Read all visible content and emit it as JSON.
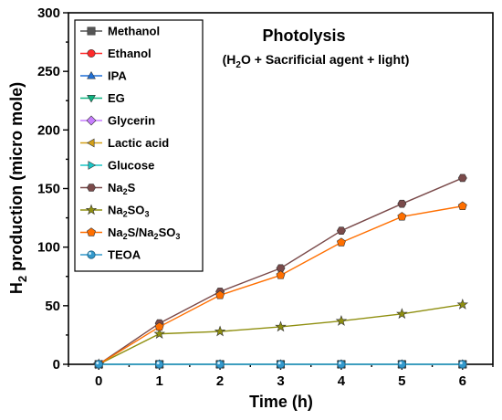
{
  "chart_data": {
    "type": "line",
    "title": "Photolysis",
    "subtitle": {
      "prefix": "(H",
      "sub1": "2",
      "rest": "O + Sacrificial agent + light)"
    },
    "xlabel": "Time (h)",
    "ylabel": {
      "main": "H",
      "sub": "2",
      "rest": " production (micro mole)"
    },
    "xlim": [
      -0.5,
      6.5
    ],
    "ylim": [
      0,
      300
    ],
    "x_ticks": [
      "0",
      "1",
      "2",
      "3",
      "4",
      "5",
      "6"
    ],
    "y_ticks": [
      "0",
      "50",
      "100",
      "150",
      "200",
      "250",
      "300"
    ],
    "grid": false,
    "legend_position": "top-left",
    "x": [
      0,
      1,
      2,
      3,
      4,
      5,
      6
    ],
    "series": [
      {
        "name": "Methanol",
        "name_parts": [
          [
            "Methanol",
            ""
          ]
        ],
        "color": "#555555",
        "marker": "square",
        "values": [
          0,
          0,
          0,
          0,
          0,
          0,
          0
        ]
      },
      {
        "name": "Ethanol",
        "name_parts": [
          [
            "Ethanol",
            ""
          ]
        ],
        "color": "#ff2a2a",
        "marker": "circle",
        "values": [
          0,
          0,
          0,
          0,
          0,
          0,
          0
        ]
      },
      {
        "name": "IPA",
        "name_parts": [
          [
            "IPA",
            ""
          ]
        ],
        "color": "#1f6fd6",
        "marker": "triangle-up",
        "values": [
          0,
          0,
          0,
          0,
          0,
          0,
          0
        ]
      },
      {
        "name": "EG",
        "name_parts": [
          [
            "EG",
            ""
          ]
        ],
        "color": "#0db380",
        "marker": "triangle-down",
        "values": [
          0,
          0,
          0,
          0,
          0,
          0,
          0
        ]
      },
      {
        "name": "Glycerin",
        "name_parts": [
          [
            "Glycerin",
            ""
          ]
        ],
        "color": "#c77dff",
        "marker": "diamond",
        "values": [
          0,
          0,
          0,
          0,
          0,
          0,
          0
        ]
      },
      {
        "name": "Lactic acid",
        "name_parts": [
          [
            "Lactic acid",
            ""
          ]
        ],
        "color": "#d4a017",
        "marker": "triangle-left",
        "values": [
          0,
          0,
          0,
          0,
          0,
          0,
          0
        ]
      },
      {
        "name": "Glucose",
        "name_parts": [
          [
            "Glucose",
            ""
          ]
        ],
        "color": "#1bc6c6",
        "marker": "triangle-right",
        "values": [
          0,
          0,
          0,
          0,
          0,
          0,
          0
        ]
      },
      {
        "name": "Na2S",
        "name_parts": [
          [
            "Na",
            ""
          ],
          [
            "2",
            "sub"
          ],
          [
            "S",
            ""
          ]
        ],
        "color": "#7a4a4a",
        "marker": "hexagon",
        "values": [
          0,
          35,
          62,
          82,
          114,
          137,
          159
        ]
      },
      {
        "name": "Na2SO3",
        "name_parts": [
          [
            "Na",
            ""
          ],
          [
            "2",
            "sub"
          ],
          [
            "SO",
            ""
          ],
          [
            "3",
            "sub"
          ]
        ],
        "color": "#8f8f10",
        "marker": "star",
        "values": [
          0,
          26,
          28,
          32,
          37,
          43,
          51
        ]
      },
      {
        "name": "Na2S/Na2SO3",
        "name_parts": [
          [
            "Na",
            ""
          ],
          [
            "2",
            "sub"
          ],
          [
            "S/Na",
            ""
          ],
          [
            "2",
            "sub"
          ],
          [
            "SO",
            ""
          ],
          [
            "3",
            "sub"
          ]
        ],
        "color": "#ff6f00",
        "marker": "pentagon",
        "values": [
          0,
          32,
          59,
          76,
          104,
          126,
          135
        ]
      },
      {
        "name": "TEOA",
        "name_parts": [
          [
            "TEOA",
            ""
          ]
        ],
        "color": "#3399cc",
        "marker": "ball",
        "values": [
          0,
          0,
          0,
          0,
          0,
          0,
          0
        ]
      }
    ]
  }
}
